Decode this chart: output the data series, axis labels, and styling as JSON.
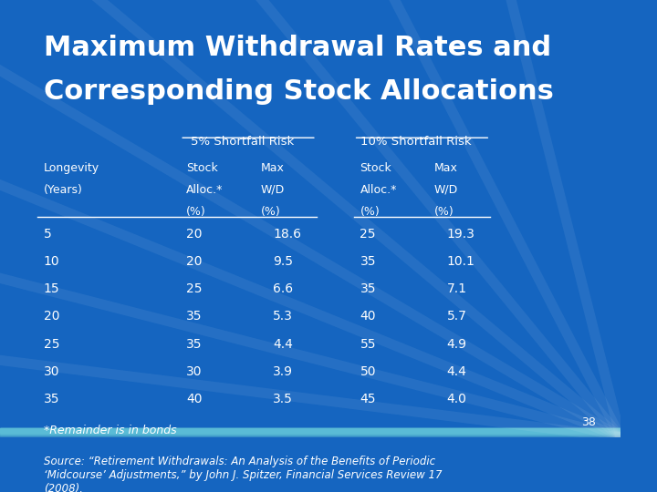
{
  "title_line1": "Maximum Withdrawal Rates and",
  "title_line2": "Corresponding Stock Allocations",
  "background_top": "#1565C0",
  "background_bottom": "#5BBCD6",
  "text_color": "#FFFFFF",
  "header1": "5% Shortfall Risk",
  "header2": "10% Shortfall Risk",
  "col_headers": [
    "Stock\nAlloc.*\n(%)",
    "Max\nW/D\n(%)"
  ],
  "longevity_label": "Longevity\n(Years)",
  "longevity": [
    5,
    10,
    15,
    20,
    25,
    30,
    35
  ],
  "risk5_stock": [
    20,
    20,
    25,
    35,
    35,
    30,
    40
  ],
  "risk5_wd": [
    18.6,
    9.5,
    6.6,
    5.3,
    4.4,
    3.9,
    3.5
  ],
  "risk10_stock": [
    25,
    35,
    35,
    40,
    55,
    50,
    45
  ],
  "risk10_wd": [
    19.3,
    10.1,
    7.1,
    5.7,
    4.9,
    4.4,
    4.0
  ],
  "footnote": "*Remainder is in bonds",
  "source": "Source: “Retirement Withdrawals: An Analysis of the Benefits of Periodic\n‘Midcourse’ Adjustments,” by John J. Spitzer, Financial Services Review 17\n(2008).",
  "page_number": "38"
}
